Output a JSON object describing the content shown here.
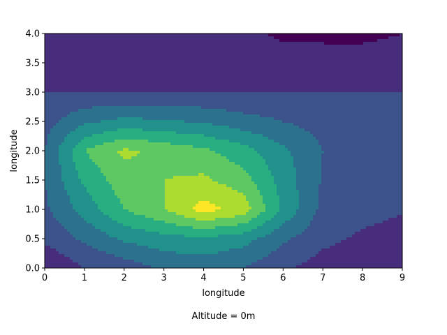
{
  "chart_data": {
    "type": "contour",
    "xlabel": "longitude",
    "ylabel": "longitude",
    "caption": "Altitude = 0m",
    "xlim": [
      0,
      9
    ],
    "ylim": [
      0,
      4
    ],
    "xticks": [
      0,
      1,
      2,
      3,
      4,
      5,
      6,
      7,
      8,
      9
    ],
    "yticks": [
      0.0,
      0.5,
      1.0,
      1.5,
      2.0,
      2.5,
      3.0,
      3.5,
      4.0
    ],
    "ytick_labels": [
      "0.0",
      "0.5",
      "1.0",
      "1.5",
      "2.0",
      "2.5",
      "3.0",
      "3.5",
      "4.0"
    ],
    "x": [
      0,
      1,
      2,
      3,
      4,
      5,
      6,
      7,
      8,
      9
    ],
    "y": [
      0.0,
      0.5,
      1.0,
      1.5,
      2.0,
      2.5,
      3.0,
      3.5,
      4.0
    ],
    "z": [
      [
        1.0,
        2.0,
        2.4,
        3.2,
        3.4,
        3.0,
        2.2,
        1.5,
        1.3,
        1.1
      ],
      [
        2.2,
        3.2,
        4.2,
        4.6,
        4.8,
        4.4,
        3.2,
        2.3,
        1.8,
        1.5
      ],
      [
        2.8,
        4.4,
        6.0,
        7.0,
        8.4,
        7.6,
        4.8,
        2.7,
        2.4,
        2.1
      ],
      [
        3.0,
        5.2,
        6.6,
        7.0,
        7.2,
        6.4,
        4.6,
        2.9,
        2.7,
        2.6
      ],
      [
        3.0,
        6.0,
        7.2,
        6.7,
        6.2,
        5.4,
        4.2,
        3.0,
        2.9,
        3.0
      ],
      [
        2.6,
        3.8,
        4.3,
        4.1,
        3.9,
        3.4,
        3.0,
        2.6,
        2.5,
        2.5
      ],
      [
        2.0,
        2.0,
        2.0,
        2.0,
        2.0,
        2.0,
        2.0,
        2.0,
        2.0,
        2.0
      ],
      [
        1.7,
        1.7,
        1.7,
        1.7,
        1.7,
        1.7,
        1.7,
        1.6,
        1.6,
        1.6
      ],
      [
        1.4,
        1.2,
        1.3,
        1.2,
        1.2,
        1.4,
        0.7,
        0.7,
        0.7,
        1.0
      ]
    ],
    "levels": [
      0.0,
      1.0,
      2.0,
      3.0,
      4.0,
      5.0,
      6.0,
      7.0,
      8.0,
      9.0
    ],
    "colors": [
      "#440154",
      "#472d7b",
      "#3b528b",
      "#2c728e",
      "#21918c",
      "#28ae80",
      "#5ec962",
      "#addc30",
      "#fde725"
    ],
    "colormap": "viridis",
    "grid": false
  }
}
